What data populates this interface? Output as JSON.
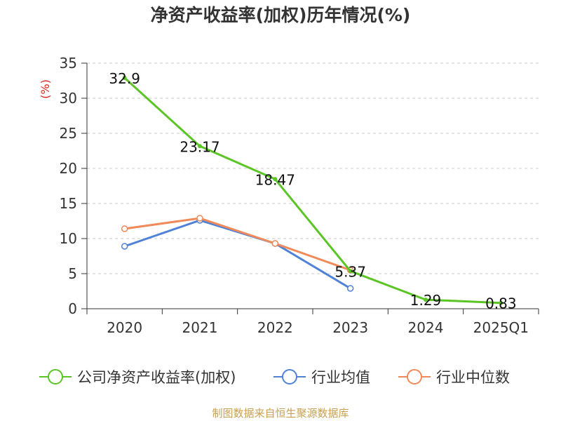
{
  "chart_data": {
    "type": "line",
    "title": "净资产收益率(加权)历年情况(%)",
    "ylabel": "(%)",
    "xlabel": "",
    "categories": [
      "2020",
      "2021",
      "2022",
      "2023",
      "2024",
      "2025Q1"
    ],
    "ylim": [
      0,
      35
    ],
    "yticks": [
      0,
      5,
      10,
      15,
      20,
      25,
      30,
      35
    ],
    "grid": "horizontal dashed",
    "legend_position": "bottom",
    "series": [
      {
        "name": "公司净资产收益率(加权)",
        "color": "#5cc526",
        "values": [
          32.9,
          23.17,
          18.47,
          5.37,
          1.29,
          0.83
        ],
        "labels": [
          "32.9",
          "23.17",
          "18.47",
          "5.37",
          "1.29",
          "0.83"
        ]
      },
      {
        "name": "行业均值",
        "color": "#4f82d6",
        "values": [
          8.9,
          12.6,
          9.3,
          2.9,
          null,
          null
        ]
      },
      {
        "name": "行业中位数",
        "color": "#f08a5a",
        "values": [
          11.4,
          12.9,
          9.3,
          5.5,
          null,
          null
        ]
      }
    ]
  },
  "footer": {
    "source": "制图数据来自恒生聚源数据库"
  }
}
